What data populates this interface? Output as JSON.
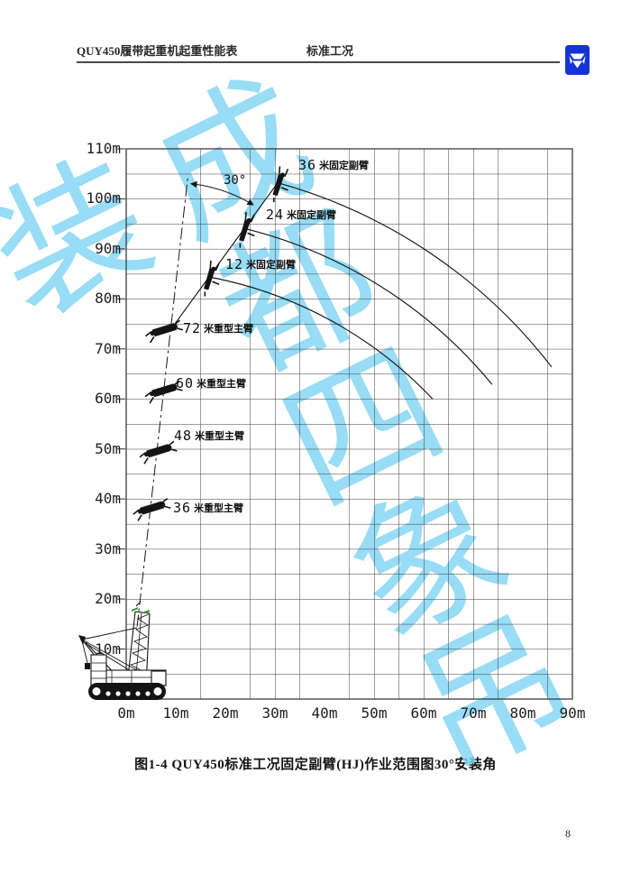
{
  "page": {
    "number": "8"
  },
  "header": {
    "title_left": "QUY450履带起重机起重性能表",
    "title_center": "标准工况",
    "logo_icon": "xcmg-logo",
    "logo_color": "#1733d6"
  },
  "watermark": {
    "text": "成都四象吊装",
    "color": "#82d5f3"
  },
  "caption": "图1-4  QUY450标准工况固定副臂(HJ)作业范围图30°安装角",
  "chart_labels": {
    "jib36": {
      "num": "36",
      "cn": "米固定副臂"
    },
    "jib24": {
      "num": "24",
      "cn": "米固定副臂"
    },
    "jib12": {
      "num": "12",
      "cn": "米固定副臂"
    },
    "boom72": {
      "num": "72",
      "cn": "米重型主臂"
    },
    "boom60": {
      "num": "60",
      "cn": "米重型主臂"
    },
    "boom48": {
      "num": "48",
      "cn": "米重型主臂"
    },
    "boom36": {
      "num": "36",
      "cn": "米重型主臂"
    }
  },
  "chart_data": {
    "type": "line",
    "title": "QUY450标准工况固定副臂(HJ)作业范围图 30°安装角",
    "xlabel": "",
    "ylabel": "",
    "xlim": [
      0,
      90
    ],
    "ylim": [
      0,
      110
    ],
    "grid_step_m": 5,
    "grid_on": true,
    "x_ticks": [
      {
        "m": 0,
        "label": "0m"
      },
      {
        "m": 10,
        "label": "10m"
      },
      {
        "m": 20,
        "label": "20m"
      },
      {
        "m": 30,
        "label": "30m"
      },
      {
        "m": 40,
        "label": "40m"
      },
      {
        "m": 50,
        "label": "50m"
      },
      {
        "m": 60,
        "label": "60m"
      },
      {
        "m": 70,
        "label": "70m"
      },
      {
        "m": 80,
        "label": "80m"
      },
      {
        "m": 90,
        "label": "90m"
      }
    ],
    "y_ticks": [
      {
        "m": 110,
        "label": "110m"
      },
      {
        "m": 100,
        "label": "100m"
      },
      {
        "m": 90,
        "label": "90m"
      },
      {
        "m": 80,
        "label": "80m"
      },
      {
        "m": 70,
        "label": "70m"
      },
      {
        "m": 60,
        "label": "60m"
      },
      {
        "m": 50,
        "label": "50m"
      },
      {
        "m": 40,
        "label": "40m"
      },
      {
        "m": 30,
        "label": "30m"
      },
      {
        "m": 20,
        "label": "20m"
      },
      {
        "m": 10,
        "label": "10m"
      }
    ],
    "series": [
      {
        "name": "36米固定副臂作业范围弧线",
        "start": [
          30.6,
          103.2
        ],
        "end": [
          85.8,
          66.4
        ],
        "radius_m": 104.7
      },
      {
        "name": "24米固定副臂作业范围弧线",
        "start": [
          23.8,
          94.1
        ],
        "end": [
          73.8,
          62.9
        ],
        "radius_m": 93.5
      },
      {
        "name": "12米固定副臂作业范围弧线",
        "start": [
          16.7,
          84.4
        ],
        "end": [
          61.8,
          60.0
        ],
        "radius_m": 83.0
      }
    ],
    "annotations": {
      "angle_label": "30°",
      "jib_axis_line": {
        "from": [
          9.0,
          73.9
        ],
        "to": [
          30.4,
          103.0
        ]
      },
      "boom_axis_dash_line": {
        "from": [
          2.2,
          14.5
        ],
        "to": [
          12.4,
          104.1
        ]
      },
      "angle_arc": {
        "center": [
          9.0,
          73.9
        ],
        "radius_m": 29.9,
        "from": [
          13.1,
          103.0
        ],
        "to": [
          25.6,
          98.8
        ]
      }
    },
    "icons": [
      {
        "type": "jib-tip",
        "at": [
          30.6,
          103.2
        ],
        "rot": -54
      },
      {
        "type": "jib-tip",
        "at": [
          23.8,
          94.1
        ],
        "rot": -54
      },
      {
        "type": "jib-tip",
        "at": [
          16.7,
          84.4
        ],
        "rot": -54
      },
      {
        "type": "boom-head",
        "at": [
          7.6,
          73.8
        ],
        "rot": -8
      },
      {
        "type": "boom-head",
        "at": [
          7.5,
          61.7
        ],
        "rot": -8
      },
      {
        "type": "boom-head",
        "at": [
          6.4,
          49.6
        ],
        "rot": -8
      },
      {
        "type": "boom-head",
        "at": [
          5.1,
          38.2
        ],
        "rot": -8
      }
    ]
  }
}
